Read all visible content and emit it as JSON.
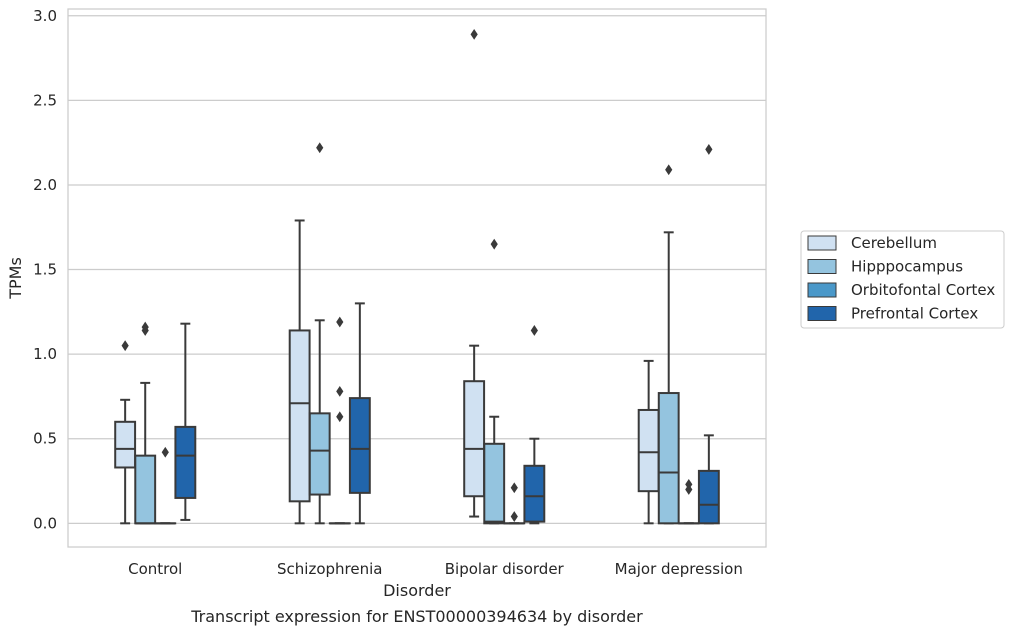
{
  "caption": "Transcript expression for ENST00000394634 by disorder",
  "chart_data": {
    "type": "box",
    "xlabel": "Disorder",
    "ylabel": "TPMs",
    "ylim": [
      -0.14,
      3.04
    ],
    "yticks": [
      "0.0",
      "0.5",
      "1.0",
      "1.5",
      "2.0",
      "2.5",
      "3.0"
    ],
    "grid": "horizontal",
    "legend_placement": "right",
    "categories": [
      "Control",
      "Schizophrenia",
      "Bipolar disorder",
      "Major depression"
    ],
    "series": [
      {
        "name": "Cerebellum",
        "color": "#d0e1f2",
        "boxes": [
          {
            "whislo": 0.0,
            "q1": 0.33,
            "med": 0.44,
            "q3": 0.6,
            "whishi": 0.73,
            "fliers": [
              1.05
            ]
          },
          {
            "whislo": 0.0,
            "q1": 0.13,
            "med": 0.71,
            "q3": 1.14,
            "whishi": 1.79,
            "fliers": []
          },
          {
            "whislo": 0.04,
            "q1": 0.16,
            "med": 0.44,
            "q3": 0.84,
            "whishi": 1.05,
            "fliers": [
              2.89
            ]
          },
          {
            "whislo": 0.0,
            "q1": 0.19,
            "med": 0.42,
            "q3": 0.67,
            "whishi": 0.96,
            "fliers": []
          }
        ]
      },
      {
        "name": "Hipppocampus",
        "color": "#94c4df",
        "boxes": [
          {
            "whislo": 0.0,
            "q1": 0.0,
            "med": 0.0,
            "q3": 0.4,
            "whishi": 0.83,
            "fliers": [
              1.14,
              1.16
            ]
          },
          {
            "whislo": 0.0,
            "q1": 0.17,
            "med": 0.43,
            "q3": 0.65,
            "whishi": 1.2,
            "fliers": [
              2.22
            ]
          },
          {
            "whislo": 0.0,
            "q1": 0.0,
            "med": 0.01,
            "q3": 0.47,
            "whishi": 0.63,
            "fliers": [
              1.65
            ]
          },
          {
            "whislo": 0.0,
            "q1": 0.0,
            "med": 0.3,
            "q3": 0.77,
            "whishi": 1.72,
            "fliers": [
              2.09
            ]
          }
        ]
      },
      {
        "name": "Orbitofontal Cortex",
        "color": "#4a98c9",
        "boxes": [
          {
            "whislo": 0.0,
            "q1": 0.0,
            "med": 0.0,
            "q3": 0.0,
            "whishi": 0.0,
            "fliers": [
              0.42
            ]
          },
          {
            "whislo": 0.0,
            "q1": 0.0,
            "med": 0.0,
            "q3": 0.0,
            "whishi": 0.0,
            "fliers": [
              0.63,
              0.78,
              1.19
            ]
          },
          {
            "whislo": 0.0,
            "q1": 0.0,
            "med": 0.0,
            "q3": 0.0,
            "whishi": 0.0,
            "fliers": [
              0.04,
              0.21
            ]
          },
          {
            "whislo": 0.0,
            "q1": 0.0,
            "med": 0.0,
            "q3": 0.0,
            "whishi": 0.0,
            "fliers": [
              0.2,
              0.23
            ]
          }
        ]
      },
      {
        "name": "Prefrontal Cortex",
        "color": "#2165ab",
        "boxes": [
          {
            "whislo": 0.02,
            "q1": 0.15,
            "med": 0.4,
            "q3": 0.57,
            "whishi": 1.18,
            "fliers": []
          },
          {
            "whislo": 0.0,
            "q1": 0.18,
            "med": 0.44,
            "q3": 0.74,
            "whishi": 1.3,
            "fliers": []
          },
          {
            "whislo": 0.0,
            "q1": 0.01,
            "med": 0.16,
            "q3": 0.34,
            "whishi": 0.5,
            "fliers": [
              1.14
            ]
          },
          {
            "whislo": 0.0,
            "q1": 0.0,
            "med": 0.11,
            "q3": 0.31,
            "whishi": 0.52,
            "fliers": [
              2.21
            ]
          }
        ]
      }
    ]
  }
}
